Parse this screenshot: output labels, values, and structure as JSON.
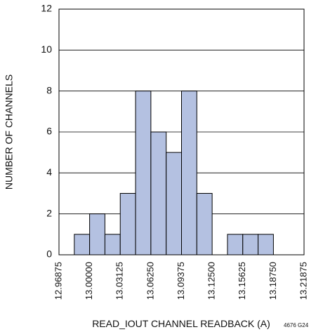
{
  "chart_data": {
    "type": "bar",
    "title": "",
    "xlabel": "READ_IOUT CHANNEL READBACK (A)",
    "ylabel": "NUMBER OF CHANNELS",
    "figure_code": "4676 G24",
    "ylim": [
      0,
      12
    ],
    "yticks": [
      0,
      2,
      4,
      6,
      8,
      10,
      12
    ],
    "xlim": [
      12.96875,
      13.21875
    ],
    "xticks": [
      "12.96875",
      "13.00000",
      "13.03125",
      "13.06250",
      "13.09375",
      "13.12500",
      "13.15625",
      "13.18750",
      "13.21875"
    ],
    "bin_width": 0.015625,
    "bin_starts": [
      12.984375,
      13.0,
      13.015625,
      13.03125,
      13.046875,
      13.0625,
      13.078125,
      13.09375,
      13.109375,
      13.125,
      13.140625,
      13.15625,
      13.171875
    ],
    "values": [
      1,
      2,
      1,
      3,
      8,
      6,
      5,
      8,
      3,
      0,
      1,
      1,
      1
    ],
    "bar_color": "#b4c1e1",
    "bar_edge_color": "#000000",
    "grid": "horizontal"
  }
}
